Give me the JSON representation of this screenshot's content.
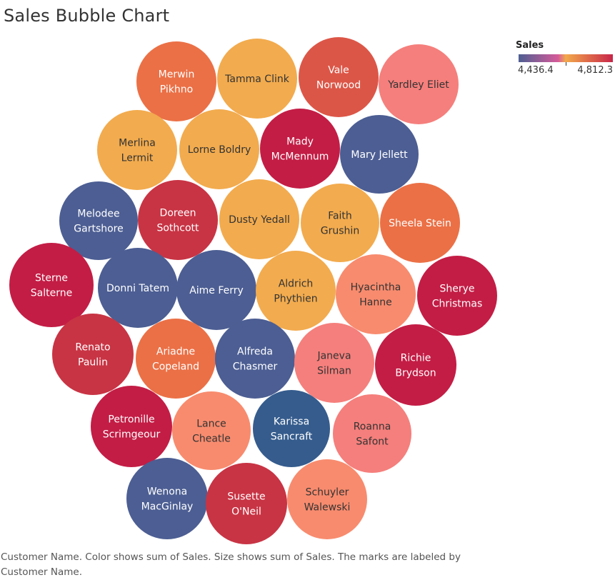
{
  "title": "Sales Bubble Chart",
  "legend": {
    "title": "Sales",
    "min_label": "4,436.4",
    "max_label": "4,812.3",
    "colors": [
      "#4e5f92",
      "#d65b9a",
      "#f2a94b",
      "#c8264a"
    ]
  },
  "caption": "Customer Name.  Color shows sum of Sales.  Size shows sum of Sales.  The marks are labeled by Customer Name.",
  "chart_data": {
    "type": "packed-bubble",
    "color_measure": "Sales",
    "size_measure": "Sales",
    "label_field": "Customer Name",
    "bubbles": [
      {
        "lines": [
          "Merwin",
          "Pikhno"
        ],
        "color": "#eb7046",
        "text_color": "#ffffff"
      },
      {
        "lines": [
          "Tamma Clink"
        ],
        "color": "#f2ab4e",
        "text_color": "#333333"
      },
      {
        "lines": [
          "Vale",
          "Norwood"
        ],
        "color": "#dc5647",
        "text_color": "#ffffff"
      },
      {
        "lines": [
          "Yardley Eliet"
        ],
        "color": "#f57f7c",
        "text_color": "#333333"
      },
      {
        "lines": [
          "Merlina",
          "Lermit"
        ],
        "color": "#f2ab4e",
        "text_color": "#333333"
      },
      {
        "lines": [
          "Lorne Boldry"
        ],
        "color": "#f2ab4e",
        "text_color": "#333333"
      },
      {
        "lines": [
          "Mady",
          "McMennum"
        ],
        "color": "#c31d45",
        "text_color": "#ffffff"
      },
      {
        "lines": [
          "Mary Jellett"
        ],
        "color": "#4c5e93",
        "text_color": "#ffffff"
      },
      {
        "lines": [
          "Melodee",
          "Gartshore"
        ],
        "color": "#4c5e93",
        "text_color": "#ffffff"
      },
      {
        "lines": [
          "Doreen",
          "Sothcott"
        ],
        "color": "#c83444",
        "text_color": "#ffffff"
      },
      {
        "lines": [
          "Dusty Yedall"
        ],
        "color": "#f2ab4e",
        "text_color": "#333333"
      },
      {
        "lines": [
          "Faith",
          "Grushin"
        ],
        "color": "#f2ab4e",
        "text_color": "#333333"
      },
      {
        "lines": [
          "Sheela Stein"
        ],
        "color": "#eb7046",
        "text_color": "#ffffff"
      },
      {
        "lines": [
          "Sterne",
          "Salterne"
        ],
        "color": "#c31d45",
        "text_color": "#ffffff"
      },
      {
        "lines": [
          "Donni Tatem"
        ],
        "color": "#4c5e93",
        "text_color": "#ffffff"
      },
      {
        "lines": [
          "Aime Ferry"
        ],
        "color": "#4c5e93",
        "text_color": "#ffffff"
      },
      {
        "lines": [
          "Aldrich",
          "Phythien"
        ],
        "color": "#f2ab4e",
        "text_color": "#333333"
      },
      {
        "lines": [
          "Hyacintha",
          "Hanne"
        ],
        "color": "#f88b6e",
        "text_color": "#333333"
      },
      {
        "lines": [
          "Sherye",
          "Christmas"
        ],
        "color": "#c31d45",
        "text_color": "#ffffff"
      },
      {
        "lines": [
          "Renato",
          "Paulin"
        ],
        "color": "#c83444",
        "text_color": "#ffffff"
      },
      {
        "lines": [
          "Ariadne",
          "Copeland"
        ],
        "color": "#eb7046",
        "text_color": "#ffffff"
      },
      {
        "lines": [
          "Alfreda",
          "Chasmer"
        ],
        "color": "#4c5e93",
        "text_color": "#ffffff"
      },
      {
        "lines": [
          "Janeva",
          "Silman"
        ],
        "color": "#f57f7c",
        "text_color": "#333333"
      },
      {
        "lines": [
          "Richie",
          "Brydson"
        ],
        "color": "#c31d45",
        "text_color": "#ffffff"
      },
      {
        "lines": [
          "Petronille",
          "Scrimgeour"
        ],
        "color": "#c31d45",
        "text_color": "#ffffff"
      },
      {
        "lines": [
          "Lance",
          "Cheatle"
        ],
        "color": "#f88b6e",
        "text_color": "#333333"
      },
      {
        "lines": [
          "Karissa",
          "Sancraft"
        ],
        "color": "#355c8d",
        "text_color": "#ffffff"
      },
      {
        "lines": [
          "Roanna",
          "Safont"
        ],
        "color": "#f57f7c",
        "text_color": "#333333"
      },
      {
        "lines": [
          "Wenona",
          "MacGinlay"
        ],
        "color": "#4c5e93",
        "text_color": "#ffffff"
      },
      {
        "lines": [
          "Susette",
          "O'Neil"
        ],
        "color": "#c83444",
        "text_color": "#ffffff"
      },
      {
        "lines": [
          "Schuyler",
          "Walewski"
        ],
        "color": "#f88b6e",
        "text_color": "#333333"
      }
    ]
  }
}
